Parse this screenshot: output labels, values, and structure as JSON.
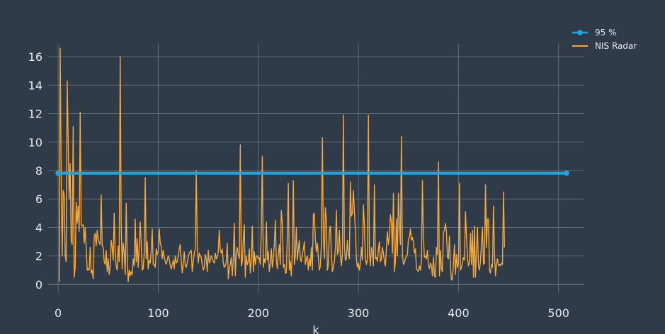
{
  "chart_data": {
    "type": "line",
    "title": "",
    "xlabel": "k",
    "ylabel": "",
    "xlim": [
      -10,
      525
    ],
    "ylim": [
      -0.6,
      16.9
    ],
    "x_ticks": [
      0,
      100,
      200,
      300,
      400,
      500
    ],
    "y_ticks": [
      0,
      2,
      4,
      6,
      8,
      10,
      12,
      14,
      16
    ],
    "grid": true,
    "legend_position": "top-right",
    "series": [
      {
        "name": "95 %",
        "color": "#1ba8e0",
        "mode": "lines+markers",
        "x": [
          0,
          508
        ],
        "y": [
          7.815,
          7.815
        ]
      },
      {
        "name": "NIS Radar",
        "color": "#f5a93d",
        "mode": "lines",
        "x_start": 1,
        "x_step": 1,
        "y": [
          0.2,
          16.6,
          7.9,
          2.0,
          6.6,
          6.3,
          2.1,
          1.6,
          14.3,
          10.2,
          6.0,
          8.5,
          3.1,
          2.8,
          11.1,
          0.5,
          1.2,
          5.8,
          4.3,
          5.5,
          3.7,
          12.1,
          4.2,
          4.1,
          4.2,
          2.9,
          4.0,
          2.6,
          1.0,
          1.1,
          1.0,
          2.6,
          0.8,
          1.0,
          0.4,
          3.3,
          3.6,
          2.7,
          3.8,
          3.2,
          2.9,
          2.8,
          6.3,
          2.7,
          2.6,
          1.6,
          1.4,
          2.4,
          0.9,
          1.8,
          0.7,
          1.3,
          3.1,
          2.6,
          1.7,
          5.0,
          2.2,
          1.3,
          1.0,
          2.7,
          1.6,
          16.0,
          4.2,
          1.1,
          2.9,
          2.2,
          0.7,
          5.7,
          1.8,
          0.2,
          1.0,
          0.6,
          0.9,
          0.7,
          1.8,
          1.3,
          4.6,
          1.6,
          3.2,
          1.2,
          2.7,
          4.4,
          2.8,
          1.0,
          1.1,
          2.2,
          7.5,
          1.8,
          3.0,
          1.1,
          1.7,
          1.5,
          2.4,
          3.9,
          1.4,
          1.4,
          1.2,
          2.5,
          2.1,
          2.3,
          3.9,
          2.9,
          2.7,
          1.8,
          2.4,
          1.9,
          1.6,
          1.4,
          1.7,
          2.0,
          1.8,
          1.3,
          1.1,
          1.4,
          1.7,
          1.1,
          2.0,
          1.5,
          1.6,
          2.0,
          2.5,
          2.8,
          1.6,
          0.8,
          1.5,
          2.3,
          1.3,
          1.2,
          1.5,
          2.0,
          2.2,
          2.3,
          2.4,
          0.9,
          1.6,
          2.2,
          2.5,
          8.0,
          2.6,
          1.5,
          2.2,
          2.0,
          1.9,
          1.4,
          1.0,
          1.2,
          2.1,
          1.8,
          0.9,
          2.4,
          1.5,
          1.7,
          2.0,
          1.8,
          1.6,
          1.5,
          2.2,
          1.8,
          1.9,
          2.3,
          3.8,
          2.4,
          2.2,
          2.5,
          1.5,
          1.2,
          1.3,
          1.6,
          2.9,
          0.4,
          1.1,
          1.4,
          1.9,
          0.6,
          1.7,
          4.3,
          0.6,
          2.3,
          2.6,
          2.1,
          1.8,
          9.8,
          1.3,
          1.6,
          3.2,
          4.2,
          0.5,
          2.0,
          1.4,
          1.6,
          2.5,
          0.8,
          1.8,
          4.1,
          0.9,
          2.3,
          1.4,
          2.0,
          2.0,
          1.8,
          1.9,
          1.4,
          3.9,
          9.0,
          1.2,
          1.8,
          1.5,
          4.4,
          1.7,
          2.3,
          0.9,
          1.5,
          2.5,
          1.2,
          1.8,
          2.8,
          4.5,
          1.7,
          1.1,
          2.1,
          2.8,
          1.4,
          5.2,
          4.3,
          1.2,
          1.4,
          0.8,
          0.8,
          3.5,
          7.1,
          1.0,
          1.6,
          0.6,
          2.4,
          7.3,
          1.4,
          2.0,
          4.0,
          1.7,
          2.5,
          3.1,
          1.8,
          1.6,
          2.1,
          2.5,
          3.0,
          1.4,
          1.8,
          2.0,
          1.0,
          1.8,
          1.3,
          2.6,
          1.0,
          4.9,
          5.0,
          3.2,
          2.3,
          2.9,
          1.9,
          1.0,
          1.3,
          2.8,
          10.3,
          3.5,
          1.8,
          5.4,
          4.5,
          1.0,
          1.4,
          3.8,
          4.1,
          2.2,
          0.9,
          1.2,
          1.6,
          2.5,
          5.2,
          2.1,
          2.3,
          3.8,
          2.0,
          1.3,
          2.1,
          11.9,
          2.8,
          1.7,
          1.8,
          3.1,
          2.2,
          1.8,
          7.2,
          4.8,
          5.0,
          6.6,
          5.2,
          3.8,
          1.8,
          1.2,
          1.5,
          1.0,
          1.5,
          2.6,
          1.7,
          5.6,
          4.2,
          1.8,
          1.4,
          1.8,
          11.9,
          2.3,
          1.3,
          2.6,
          2.3,
          1.3,
          7.0,
          1.8,
          1.9,
          1.6,
          2.5,
          3.0,
          1.6,
          1.8,
          2.6,
          2.2,
          1.6,
          1.3,
          2.5,
          3.7,
          2.8,
          3.4,
          4.9,
          4.4,
          2.2,
          6.4,
          0.9,
          1.6,
          4.6,
          2.0,
          6.4,
          4.3,
          2.8,
          10.4,
          2.1,
          1.4,
          1.5,
          1.8,
          2.0,
          2.1,
          3.2,
          3.3,
          3.9,
          3.1,
          3.3,
          3.0,
          2.2,
          2.5,
          1.1,
          1.0,
          0.9,
          1.3,
          1.0,
          1.6,
          7.3,
          3.2,
          1.9,
          2.0,
          1.8,
          2.4,
          1.4,
          1.1,
          1.5,
          1.3,
          0.6,
          1.9,
          0.6,
          0.5,
          2.6,
          2.1,
          8.6,
          0.6,
          2.4,
          1.1,
          0.9,
          3.7,
          3.8,
          4.3,
          3.7,
          1.9,
          1.8,
          3.4,
          1.2,
          0.3,
          0.4,
          1.5,
          2.8,
          0.7,
          2.1,
          1.2,
          1.4,
          7.1,
          1.0,
          1.2,
          1.5,
          1.9,
          1.7,
          5.1,
          3.4,
          1.9,
          1.3,
          1.6,
          3.6,
          1.4,
          3.8,
          0.5,
          4.1,
          0.5,
          2.3,
          4.0,
          1.3,
          1.0,
          1.6,
          2.9,
          4.0,
          1.4,
          1.5,
          7.0,
          2.6,
          4.6,
          4.6,
          1.0,
          0.8,
          1.4,
          1.2,
          5.5,
          2.1,
          0.6,
          1.4,
          1.8,
          1.3,
          1.4,
          1.3,
          1.5,
          1.4,
          6.5,
          2.6
        ]
      }
    ]
  }
}
